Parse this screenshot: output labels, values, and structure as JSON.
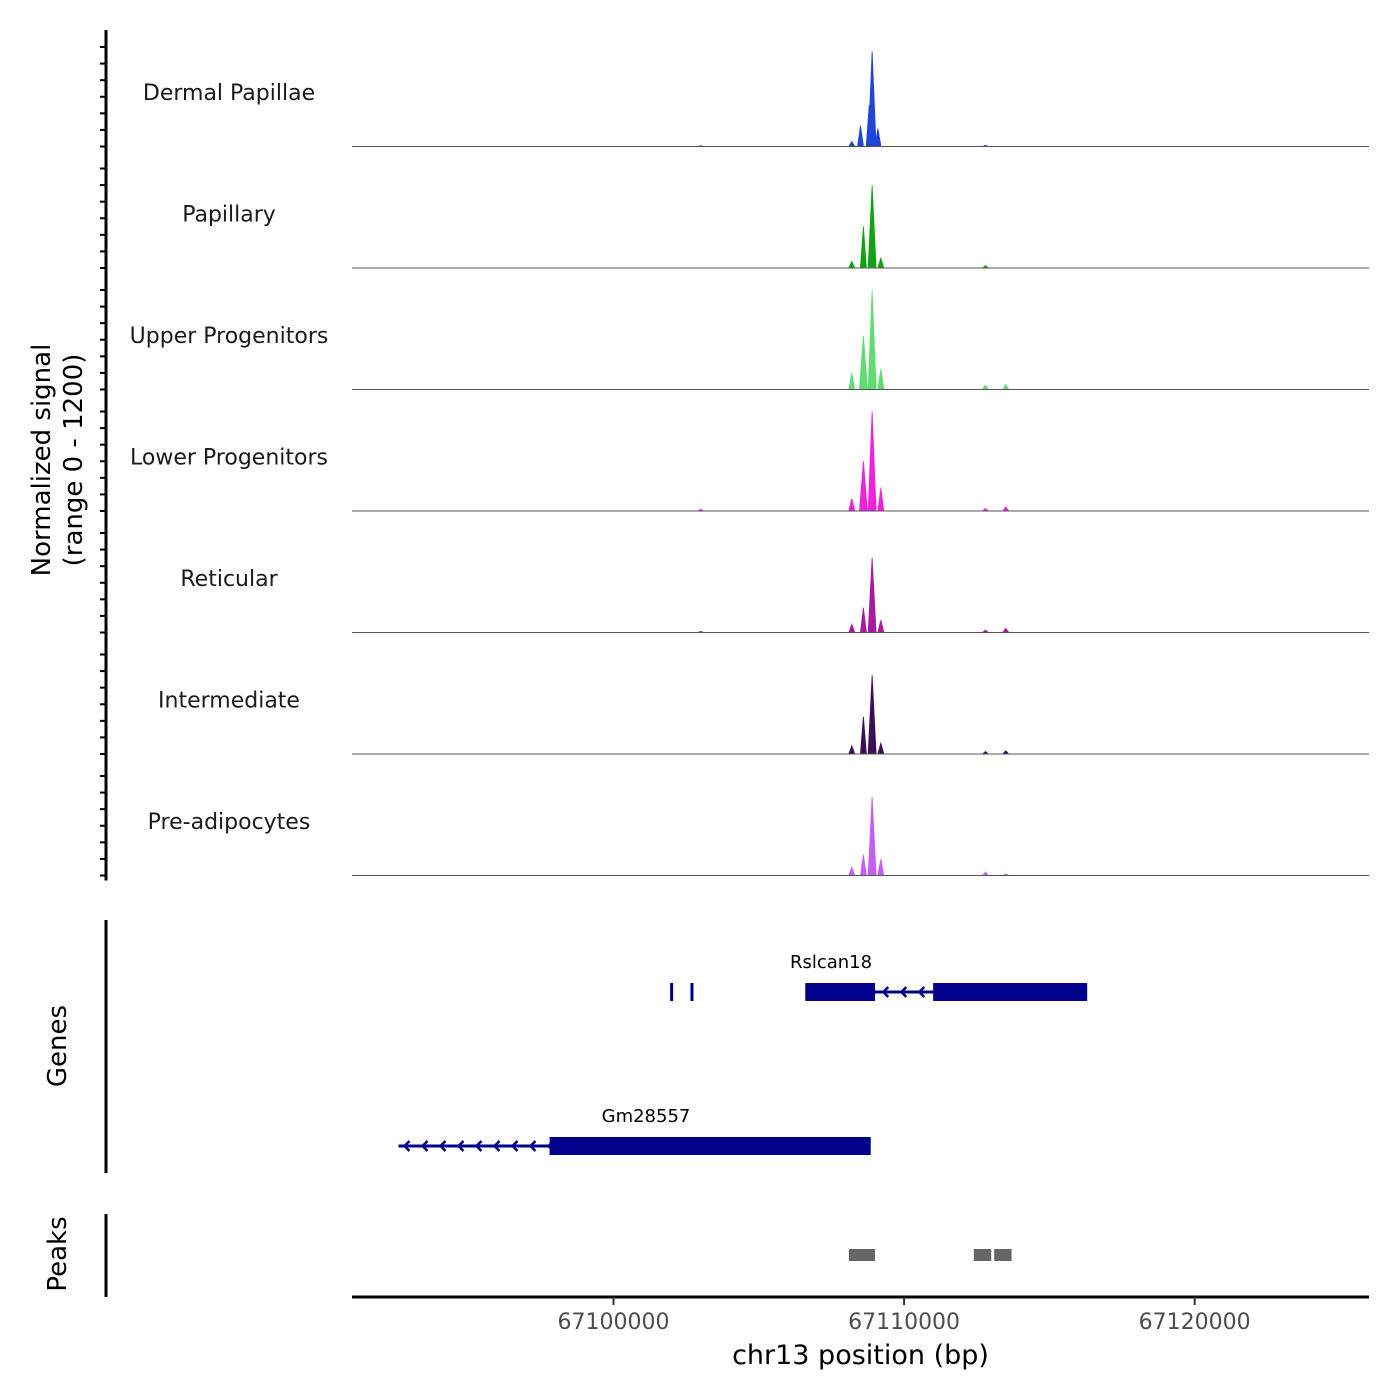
{
  "chart_data": {
    "type": "area",
    "title": "",
    "signal_axis_label_line1": "Normalized signal",
    "signal_axis_label_line2": "(range 0 - 1200)",
    "ylim": [
      0,
      1200
    ],
    "xlabel": "chr13 position (bp)",
    "xlim": [
      67091000,
      67126000
    ],
    "x_ticks": [
      67100000,
      67110000,
      67120000
    ],
    "x_tick_labels": [
      "67100000",
      "67110000",
      "67120000"
    ],
    "tracks": [
      {
        "name": "Dermal Papillae",
        "color": "#1f46d6",
        "peaks": [
          {
            "x": 67108200,
            "y": 60
          },
          {
            "x": 67108500,
            "y": 250
          },
          {
            "x": 67108800,
            "y": 500
          },
          {
            "x": 67108900,
            "y": 1150
          },
          {
            "x": 67109100,
            "y": 220
          },
          {
            "x": 67103000,
            "y": 10
          },
          {
            "x": 67112800,
            "y": 15
          }
        ]
      },
      {
        "name": "Papillary",
        "color": "#12a312",
        "peaks": [
          {
            "x": 67108200,
            "y": 80
          },
          {
            "x": 67108600,
            "y": 500
          },
          {
            "x": 67108900,
            "y": 1000
          },
          {
            "x": 67109200,
            "y": 120
          },
          {
            "x": 67112800,
            "y": 30
          }
        ]
      },
      {
        "name": "Upper Progenitors",
        "color": "#5fdc72",
        "peaks": [
          {
            "x": 67108200,
            "y": 200
          },
          {
            "x": 67108600,
            "y": 650
          },
          {
            "x": 67108900,
            "y": 1200
          },
          {
            "x": 67109200,
            "y": 250
          },
          {
            "x": 67112800,
            "y": 50
          },
          {
            "x": 67113500,
            "y": 60
          }
        ]
      },
      {
        "name": "Lower Progenitors",
        "color": "#ee22dd",
        "peaks": [
          {
            "x": 67108200,
            "y": 150
          },
          {
            "x": 67108600,
            "y": 600
          },
          {
            "x": 67108900,
            "y": 1200
          },
          {
            "x": 67109200,
            "y": 280
          },
          {
            "x": 67103000,
            "y": 20
          },
          {
            "x": 67112800,
            "y": 30
          },
          {
            "x": 67113500,
            "y": 50
          }
        ]
      },
      {
        "name": "Reticular",
        "color": "#a81ba0",
        "peaks": [
          {
            "x": 67108200,
            "y": 100
          },
          {
            "x": 67108600,
            "y": 300
          },
          {
            "x": 67108900,
            "y": 900
          },
          {
            "x": 67109200,
            "y": 150
          },
          {
            "x": 67103000,
            "y": 15
          },
          {
            "x": 67112800,
            "y": 30
          },
          {
            "x": 67113500,
            "y": 50
          }
        ]
      },
      {
        "name": "Intermediate",
        "color": "#3c1059",
        "peaks": [
          {
            "x": 67108200,
            "y": 100
          },
          {
            "x": 67108600,
            "y": 450
          },
          {
            "x": 67108900,
            "y": 950
          },
          {
            "x": 67109200,
            "y": 130
          },
          {
            "x": 67112800,
            "y": 30
          },
          {
            "x": 67113500,
            "y": 40
          }
        ]
      },
      {
        "name": "Pre-adipocytes",
        "color": "#c45ff0",
        "peaks": [
          {
            "x": 67108200,
            "y": 100
          },
          {
            "x": 67108600,
            "y": 250
          },
          {
            "x": 67108900,
            "y": 950
          },
          {
            "x": 67109200,
            "y": 200
          },
          {
            "x": 67112800,
            "y": 40
          },
          {
            "x": 67113500,
            "y": 20
          }
        ]
      }
    ],
    "genes_axis_label": "Genes",
    "genes_color": "#00008b",
    "genes": [
      {
        "name": "Rslcan18",
        "start": 67106600,
        "end": 67116300,
        "strand": "-",
        "exons": [
          [
            67106600,
            67109000
          ],
          [
            67111000,
            67116300
          ]
        ],
        "junctions": [
          67102000,
          67102700,
          67107700,
          67108100
        ]
      },
      {
        "name": "Gm28557",
        "start": 67092600,
        "end": 67108800,
        "strand": "-",
        "exons": [
          [
            67097800,
            67109000
          ],
          [
            67105600,
            67106500
          ]
        ],
        "junctions": [
          67102000,
          67102700,
          67108800
        ]
      }
    ],
    "peaks_axis_label": "Peaks",
    "peaks_color": "#666666",
    "peak_regions": [
      [
        67108100,
        67109000
      ],
      [
        67112400,
        67113000
      ],
      [
        67113100,
        67113700
      ]
    ]
  }
}
